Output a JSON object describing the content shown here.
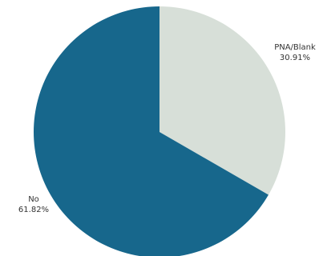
{
  "chart_data": {
    "type": "pie",
    "slices": [
      {
        "label": "PNA/Blank",
        "value": 30.91,
        "value_label": "30.91%",
        "color": "#d7dfd8"
      },
      {
        "label": "No",
        "value": 61.82,
        "value_label": "61.82%",
        "color": "#17678c"
      }
    ],
    "start_angle_deg": 0,
    "direction": "clockwise"
  }
}
